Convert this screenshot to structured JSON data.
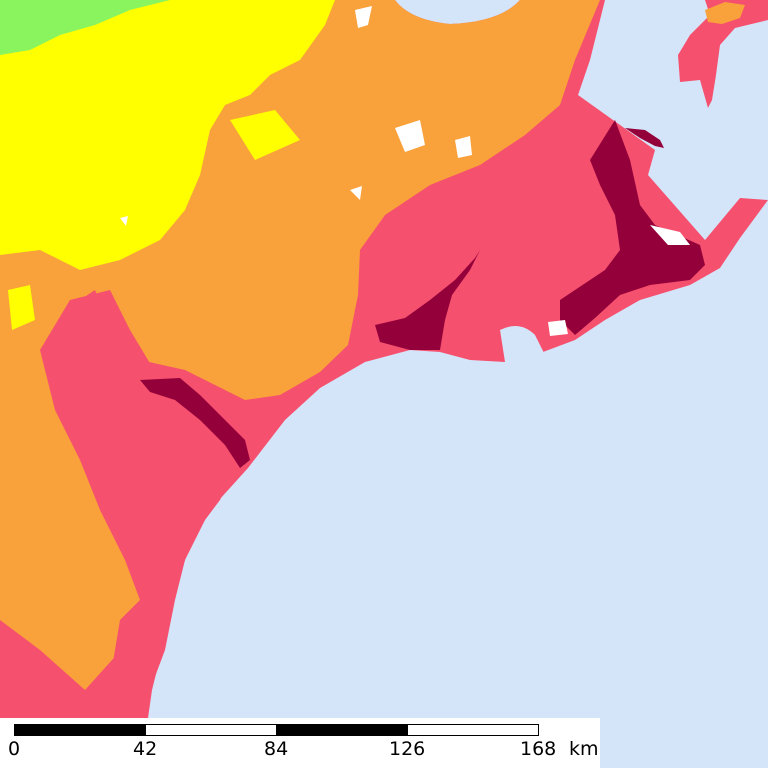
{
  "map": {
    "colors": {
      "sea": "#d4e5f9",
      "lowland": "#f6506f",
      "wetland": "#94003a",
      "hills": "#f9a13b",
      "upland": "#ffff00",
      "highland": "#8af45e",
      "bare": "#ffffff"
    }
  },
  "scale": {
    "labels": [
      "0",
      "42",
      "84",
      "126",
      "168"
    ],
    "unit": "km"
  }
}
